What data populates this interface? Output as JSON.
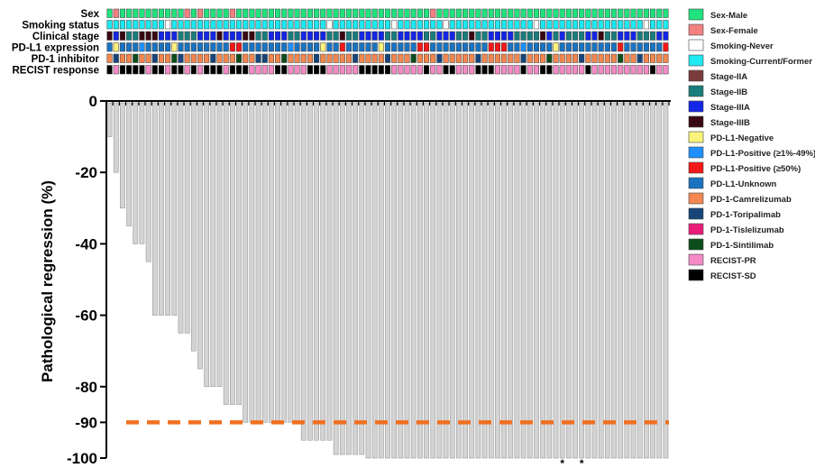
{
  "chart_data": {
    "type": "bar",
    "ylabel": "Pathological regression (%)",
    "ylim": [
      -100,
      0
    ],
    "yticks": [
      0,
      -20,
      -40,
      -60,
      -80,
      -90,
      -100
    ],
    "reference_line": {
      "value": -90,
      "color": "#f07020",
      "style": "dashed"
    },
    "asterisk_marks": [
      {
        "bar_index": 70,
        "label": "*"
      },
      {
        "bar_index": 73,
        "label": "*"
      }
    ],
    "bar_color": "#d3d3d3",
    "values": [
      -10,
      -20,
      -30,
      -35,
      -40,
      -40,
      -45,
      -60,
      -60,
      -60,
      -60,
      -65,
      -65,
      -70,
      -75,
      -80,
      -80,
      -80,
      -85,
      -85,
      -85,
      -90,
      -90,
      -90,
      -90,
      -90,
      -90,
      -90,
      -90,
      -90,
      -95,
      -95,
      -95,
      -95,
      -95,
      -99,
      -99,
      -99,
      -99,
      -99,
      -100,
      -100,
      -100,
      -100,
      -100,
      -100,
      -100,
      -100,
      -100,
      -100,
      -100,
      -100,
      -100,
      -100,
      -100,
      -100,
      -100,
      -100,
      -100,
      -100,
      -100,
      -100,
      -100,
      -100,
      -100,
      -100,
      -100,
      -100,
      -100,
      -100,
      -100,
      -100,
      -100,
      -100,
      -100,
      -100,
      -100,
      -100,
      -100,
      -100,
      -100,
      -100,
      -100,
      -100,
      -100,
      -100,
      -100
    ],
    "tracks": [
      {
        "label": "Sex",
        "codes": "MFMMMMMMMMMMFMFMMMMFMMMMMMMMMMMMMMMMMMMMMMMMMMMMMMFMMMMMMMMMMMMMMMMMMMMMMMMMMMMMMMMMMMMMMMM"
      },
      {
        "label": "Smoking status",
        "codes": "CCCCCCCCCNCCCCCCCCCCCCCCCCCCCCCCCCNCCCCCCCCCNCCCCCCCNCCCCCCCCCCCCCNCCCCCCCCCCCCCCCCNCCCCCCC"
      },
      {
        "label": "Clinical stage",
        "codes": "DADBBDDDAAABBBAAADAAADDBBAAABBAAAABBDBBAAAABBAAAABBAAABBDBBAAAABBBBDABABBBAADBBAAABBBAAA"
      },
      {
        "label": "PD-L1 expression",
        "codes": "UYUUUNUUUUYUUUUUUUURRUUUUUUUNUUUUYUURUUUUUYUUUUURRUUUUUUUUURRRUUNUUUUYUUUUUUUUURUUUUUURU"
      },
      {
        "label": "PD-1 inhibitor",
        "codes": "CTCCSCCTCCSTCCCCTCCCSCCTTCCSCCCCTCCCCCTCCCCTCCCSCCCTCCCCCTCCCCCCTCCCSCCCCTCCCCCSCCTCCCCC"
      },
      {
        "label": "RECIST response",
        "codes": "SPSSSSPSSPSSPSPSSSPSSSPPPPSSPPPSSSPPPPPSSSSSPPPPPSPPSSPPPSSSPPPPSPPSSPPPPPSPPPPPPPPPSPPPP"
      }
    ],
    "category_colors": {
      "Sex": {
        "M": "#22e27e",
        "F": "#f38181"
      },
      "Smoking status": {
        "N": "#ffffff",
        "C": "#1ee8f0"
      },
      "Clinical stage": {
        "A": "#1426e6",
        "B": "#1a7d7d",
        "D": "#3a0812"
      },
      "PD-L1 expression": {
        "U": "#1a73c0",
        "Y": "#fbf37b",
        "N": "#1e90ff",
        "R": "#f51818"
      },
      "PD-1 inhibitor": {
        "C": "#f2874f",
        "T": "#17457b",
        "I": "#ea1c7a",
        "S": "#0c4d1a"
      },
      "RECIST response": {
        "P": "#f48ac5",
        "S": "#000000"
      }
    },
    "legend": [
      {
        "label": "Sex-Male",
        "color": "#22e27e"
      },
      {
        "label": "Sex-Female",
        "color": "#f38181"
      },
      {
        "label": "Smoking-Never",
        "color": "#ffffff"
      },
      {
        "label": "Smoking-Current/Former",
        "color": "#1ee8f0"
      },
      {
        "label": "Stage-IIA",
        "color": "#7a3b3b"
      },
      {
        "label": "Stage-IIB",
        "color": "#1a7d7d"
      },
      {
        "label": "Stage-IIIA",
        "color": "#1426e6"
      },
      {
        "label": "Stage-IIIB",
        "color": "#3a0812"
      },
      {
        "label": "PD-L1-Negative",
        "color": "#fbf37b"
      },
      {
        "label": "PD-L1-Positive (≥1%-49%)",
        "color": "#1e90ff"
      },
      {
        "label": "PD-L1-Positive (≥50%)",
        "color": "#f51818"
      },
      {
        "label": "PD-L1-Unknown",
        "color": "#1a73c0"
      },
      {
        "label": "PD-1-Camrelizumab",
        "color": "#f2874f"
      },
      {
        "label": "PD-1-Toripalimab",
        "color": "#17457b"
      },
      {
        "label": "PD-1-Tislelizumab",
        "color": "#ea1c7a"
      },
      {
        "label": "PD-1-Sintilimab",
        "color": "#0c4d1a"
      },
      {
        "label": "RECIST-PR",
        "color": "#f48ac5"
      },
      {
        "label": "RECIST-SD",
        "color": "#000000"
      }
    ]
  }
}
